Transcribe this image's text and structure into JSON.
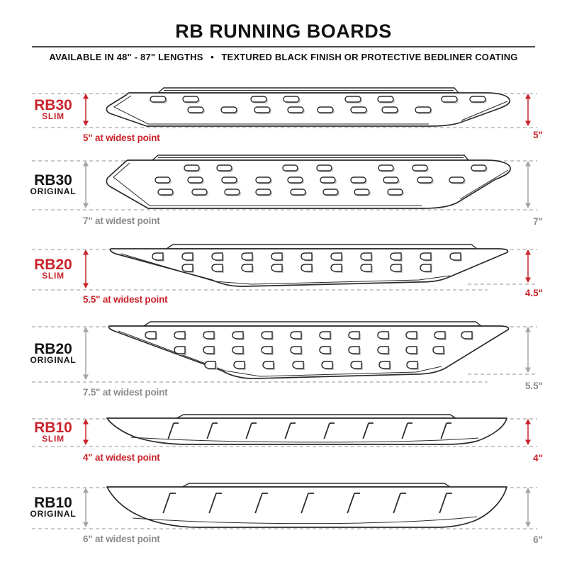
{
  "header": {
    "title": "RB RUNNING BOARDS",
    "subtitle": "AVAILABLE IN 48\" - 87\" LENGTHS  •  TEXTURED BLACK FINISH OR PROTECTIVE BEDLINER COATING"
  },
  "colors": {
    "accent_red": "#c9242c",
    "text_black": "#141414",
    "caption_gray": "#8c8c8c",
    "arrow_gray": "#a5a5a5",
    "outline_black": "#2b2b2b",
    "dash_gray": "#c9c9c9"
  },
  "products": [
    {
      "model": "RB30",
      "variant": "SLIM",
      "style": "slim",
      "tread_type": "slotted",
      "widest_caption": "5\" at widest point",
      "right_dimension": "5\""
    },
    {
      "model": "RB30",
      "variant": "ORIGINAL",
      "style": "original",
      "tread_type": "slotted",
      "widest_caption": "7\" at widest point",
      "right_dimension": "7\""
    },
    {
      "model": "RB20",
      "variant": "SLIM",
      "style": "slim",
      "tread_type": "d-hole",
      "widest_caption": "5.5\" at widest point",
      "right_dimension": "4.5\""
    },
    {
      "model": "RB20",
      "variant": "ORIGINAL",
      "style": "original",
      "tread_type": "d-hole",
      "widest_caption": "7.5\" at widest point",
      "right_dimension": "5.5\""
    },
    {
      "model": "RB10",
      "variant": "SLIM",
      "style": "slim",
      "tread_type": "hash-mark",
      "widest_caption": "4\" at widest point",
      "right_dimension": "4\""
    },
    {
      "model": "RB10",
      "variant": "ORIGINAL",
      "style": "original",
      "tread_type": "hash-mark",
      "widest_caption": "6\" at widest point",
      "right_dimension": "6\""
    }
  ]
}
